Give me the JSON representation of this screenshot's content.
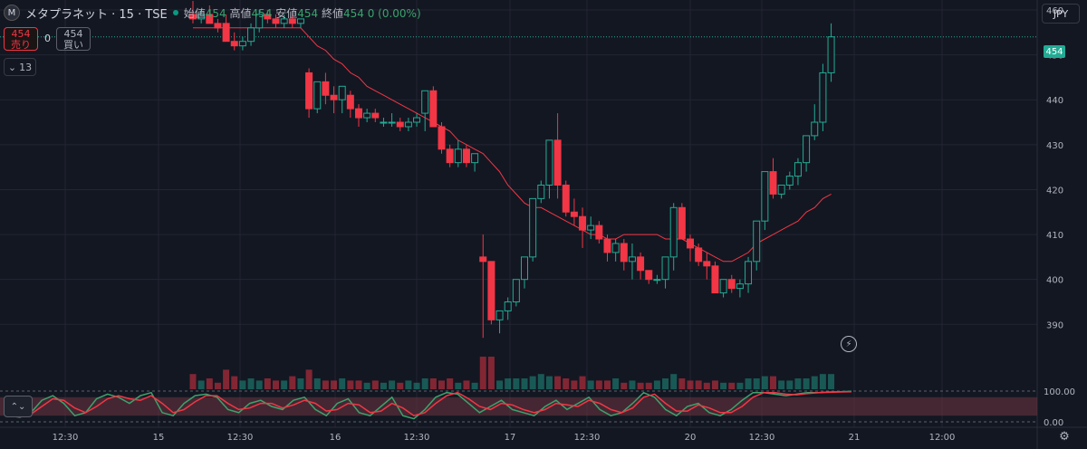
{
  "header": {
    "logo_letter": "M",
    "symbol": "メタプラネット · 15 · TSE",
    "ohlc": [
      {
        "label": "始値",
        "value": "454"
      },
      {
        "label": "高値",
        "value": "454"
      },
      {
        "label": "安値",
        "value": "454"
      },
      {
        "label": "終値",
        "value": "454"
      }
    ],
    "change": "0 (0.00%)"
  },
  "trade": {
    "sell_price": "454",
    "sell_label": "売り",
    "spread": "0",
    "buy_price": "454",
    "buy_label": "買い"
  },
  "indicators_toggle": "13",
  "currency": "JPY",
  "last_price": "454",
  "colors": {
    "up": "#22ab94",
    "down": "#f23645",
    "ma": "#f23645",
    "stoch_k": "#3ba36d",
    "stoch_d": "#f23645",
    "band": "#6e3440",
    "grid": "#232632"
  },
  "chart_data": {
    "type": "candlestick",
    "price_axis": {
      "ticks": [
        390,
        400,
        410,
        420,
        430,
        440,
        450,
        460
      ],
      "range": [
        382,
        461
      ]
    },
    "oscillator_axis": {
      "ticks": [
        "100.00",
        "0.00"
      ],
      "range": [
        0,
        100
      ]
    },
    "time_axis": {
      "ticks": [
        "12:30",
        "15",
        "12:30",
        "16",
        "12:30",
        "17",
        "12:30",
        "20",
        "12:30",
        "21",
        "12:00"
      ]
    },
    "candles": [
      [
        459,
        462,
        457,
        458
      ],
      [
        458,
        460,
        457,
        459
      ],
      [
        459,
        461,
        457,
        457
      ],
      [
        457,
        458,
        455,
        456
      ],
      [
        457,
        459,
        453,
        453
      ],
      [
        453,
        455,
        451,
        452
      ],
      [
        452,
        454,
        451,
        453
      ],
      [
        453,
        457,
        452,
        456
      ],
      [
        456,
        460,
        455,
        459
      ],
      [
        459,
        460,
        457,
        458
      ],
      [
        458,
        459,
        456,
        457
      ],
      [
        457,
        459,
        456,
        458
      ],
      [
        458,
        459,
        456,
        457
      ],
      [
        457,
        458,
        456,
        458
      ],
      [
        446,
        447,
        436,
        438
      ],
      [
        438,
        444,
        437,
        444
      ],
      [
        444,
        446,
        439,
        441
      ],
      [
        441,
        443,
        437,
        440
      ],
      [
        440,
        443,
        437,
        443
      ],
      [
        441,
        442,
        436,
        438
      ],
      [
        438,
        439,
        434,
        436
      ],
      [
        436,
        438,
        435,
        437
      ],
      [
        437,
        438,
        435,
        436
      ],
      [
        435,
        436,
        434,
        435
      ],
      [
        435,
        437,
        434,
        435
      ],
      [
        435,
        436,
        433,
        434
      ],
      [
        434,
        436,
        433,
        435
      ],
      [
        435,
        437,
        434,
        436
      ],
      [
        437,
        442,
        433,
        442
      ],
      [
        442,
        443,
        434,
        434
      ],
      [
        434,
        435,
        428,
        429
      ],
      [
        429,
        430,
        425,
        426
      ],
      [
        426,
        431,
        425,
        429
      ],
      [
        429,
        430,
        425,
        426
      ],
      [
        426,
        428,
        424,
        428
      ],
      [
        405,
        410,
        387,
        404
      ],
      [
        404,
        404,
        390,
        391
      ],
      [
        391,
        393,
        388,
        393
      ],
      [
        393,
        396,
        391,
        395
      ],
      [
        395,
        400,
        394,
        400
      ],
      [
        400,
        405,
        398,
        405
      ],
      [
        405,
        418,
        404,
        418
      ],
      [
        418,
        422,
        417,
        421
      ],
      [
        421,
        431,
        418,
        431
      ],
      [
        431,
        437,
        418,
        421
      ],
      [
        421,
        422,
        414,
        415
      ],
      [
        415,
        418,
        412,
        414
      ],
      [
        414,
        416,
        407,
        411
      ],
      [
        411,
        414,
        409,
        412
      ],
      [
        412,
        413,
        408,
        409
      ],
      [
        409,
        410,
        404,
        406
      ],
      [
        406,
        409,
        404,
        408
      ],
      [
        408,
        409,
        402,
        404
      ],
      [
        404,
        408,
        400,
        405
      ],
      [
        405,
        406,
        400,
        402
      ],
      [
        402,
        402,
        399,
        400
      ],
      [
        400,
        401,
        399,
        400
      ],
      [
        400,
        405,
        398,
        405
      ],
      [
        405,
        417,
        402,
        416
      ],
      [
        416,
        417,
        409,
        409
      ],
      [
        409,
        410,
        404,
        407
      ],
      [
        407,
        408,
        403,
        404
      ],
      [
        404,
        406,
        400,
        403
      ],
      [
        403,
        404,
        397,
        397
      ],
      [
        397,
        400,
        396,
        400
      ],
      [
        400,
        401,
        397,
        398
      ],
      [
        398,
        400,
        396,
        399
      ],
      [
        399,
        405,
        397,
        404
      ],
      [
        404,
        413,
        402,
        413
      ],
      [
        413,
        424,
        411,
        424
      ],
      [
        424,
        427,
        418,
        419
      ],
      [
        419,
        421,
        418,
        421
      ],
      [
        421,
        424,
        420,
        423
      ],
      [
        423,
        427,
        421,
        426
      ],
      [
        426,
        432,
        424,
        432
      ],
      [
        432,
        439,
        431,
        435
      ],
      [
        435,
        448,
        433,
        446
      ],
      [
        446,
        457,
        444,
        454
      ]
    ],
    "ma_values": [
      456,
      456,
      456,
      456,
      456,
      456,
      456,
      456,
      456,
      456,
      456,
      456,
      456,
      456,
      454,
      452,
      451,
      449,
      448,
      446,
      445,
      443,
      442,
      441,
      440,
      439,
      438,
      437,
      436,
      435,
      434,
      433,
      431,
      430,
      429,
      428,
      426,
      424,
      421,
      419,
      417,
      416,
      416,
      415,
      414,
      413,
      412,
      411,
      410,
      410,
      409,
      409,
      410,
      410,
      410,
      410,
      410,
      409,
      409,
      409,
      408,
      407,
      406,
      405,
      404,
      404,
      405,
      406,
      408,
      409,
      410,
      411,
      412,
      413,
      415,
      416,
      418,
      419
    ],
    "volumes": [
      7,
      4,
      5,
      3,
      9,
      6,
      4,
      5,
      4,
      5,
      4,
      4,
      6,
      5,
      9,
      5,
      4,
      4,
      5,
      4,
      4,
      3,
      4,
      3,
      4,
      3,
      4,
      3,
      5,
      5,
      4,
      5,
      3,
      4,
      3,
      15,
      15,
      4,
      5,
      5,
      5,
      6,
      7,
      6,
      6,
      5,
      4,
      6,
      4,
      4,
      4,
      5,
      3,
      4,
      3,
      3,
      4,
      5,
      7,
      5,
      4,
      4,
      3,
      4,
      3,
      3,
      3,
      5,
      5,
      6,
      6,
      4,
      4,
      5,
      5,
      6,
      7,
      7
    ],
    "stoch_k": [
      20,
      15,
      30,
      70,
      85,
      60,
      20,
      30,
      75,
      90,
      80,
      60,
      85,
      95,
      30,
      20,
      60,
      85,
      90,
      80,
      40,
      30,
      60,
      70,
      50,
      40,
      70,
      80,
      40,
      20,
      60,
      75,
      30,
      20,
      50,
      80,
      20,
      10,
      40,
      80,
      95,
      90,
      60,
      30,
      50,
      70,
      40,
      30,
      20,
      50,
      70,
      40,
      60,
      80,
      40,
      20,
      30,
      60,
      95,
      80,
      40,
      20,
      50,
      60,
      30,
      20,
      40,
      70,
      95,
      95,
      90,
      85,
      90,
      95,
      95,
      97,
      98,
      99
    ],
    "stoch_d": [
      30,
      20,
      25,
      50,
      75,
      70,
      45,
      30,
      50,
      75,
      85,
      75,
      70,
      85,
      60,
      30,
      40,
      65,
      85,
      85,
      60,
      40,
      45,
      60,
      60,
      45,
      55,
      70,
      60,
      35,
      40,
      60,
      55,
      30,
      35,
      60,
      45,
      20,
      30,
      60,
      85,
      95,
      75,
      50,
      40,
      60,
      55,
      40,
      30,
      40,
      60,
      55,
      50,
      70,
      60,
      40,
      30,
      45,
      80,
      90,
      60,
      35,
      35,
      55,
      45,
      30,
      30,
      50,
      80,
      95,
      95,
      90,
      88,
      92,
      95,
      96,
      97,
      98
    ]
  }
}
